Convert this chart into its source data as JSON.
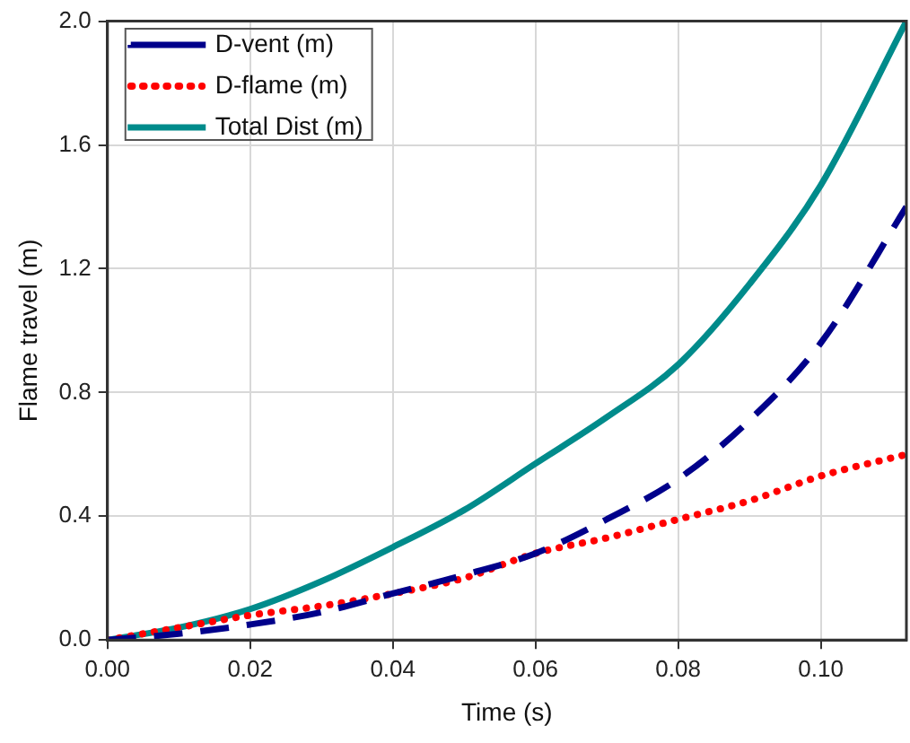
{
  "chart_data": {
    "type": "line",
    "xlabel": "Time (s)",
    "ylabel": "Flame travel (m)",
    "xlim": [
      0,
      0.112
    ],
    "xticks": [
      {
        "value": 0,
        "label": "0.00"
      },
      {
        "value": 0.02,
        "label": "0.02"
      },
      {
        "value": 0.04,
        "label": "0.04"
      },
      {
        "value": 0.06,
        "label": "0.06"
      },
      {
        "value": 0.08,
        "label": "0.08"
      },
      {
        "value": 0.1,
        "label": "0.10"
      }
    ],
    "ylim": [
      0,
      2
    ],
    "yticks": [
      {
        "value": 0,
        "label": "0.0"
      },
      {
        "value": 0.4,
        "label": "0.4"
      },
      {
        "value": 0.8,
        "label": "0.8"
      },
      {
        "value": 1.2,
        "label": "1.2"
      },
      {
        "value": 1.6,
        "label": "1.6"
      },
      {
        "value": 2,
        "label": "2.0"
      }
    ],
    "grid": true,
    "legend": "top left",
    "marker": "none",
    "x": [
      0,
      0.01,
      0.02,
      0.03,
      0.04,
      0.05,
      0.06,
      0.07,
      0.08,
      0.09,
      0.1,
      0.112
    ],
    "series": [
      {
        "name": "D-vent (m)",
        "color": "#00008b",
        "line_style": "dashed",
        "values": [
          0,
          0.02,
          0.05,
          0.09,
          0.15,
          0.21,
          0.28,
          0.39,
          0.52,
          0.71,
          0.96,
          1.4
        ]
      },
      {
        "name": "D-flame (m)",
        "color": "#ff0000",
        "line_style": "dotted",
        "values": [
          0,
          0.04,
          0.08,
          0.11,
          0.15,
          0.2,
          0.28,
          0.33,
          0.39,
          0.45,
          0.53,
          0.6
        ]
      },
      {
        "name": "Total Dist (m)",
        "color": "#008b8b",
        "line_style": "solid",
        "values": [
          0,
          0.04,
          0.1,
          0.19,
          0.3,
          0.42,
          0.57,
          0.72,
          0.89,
          1.15,
          1.47,
          2.0
        ]
      }
    ]
  }
}
